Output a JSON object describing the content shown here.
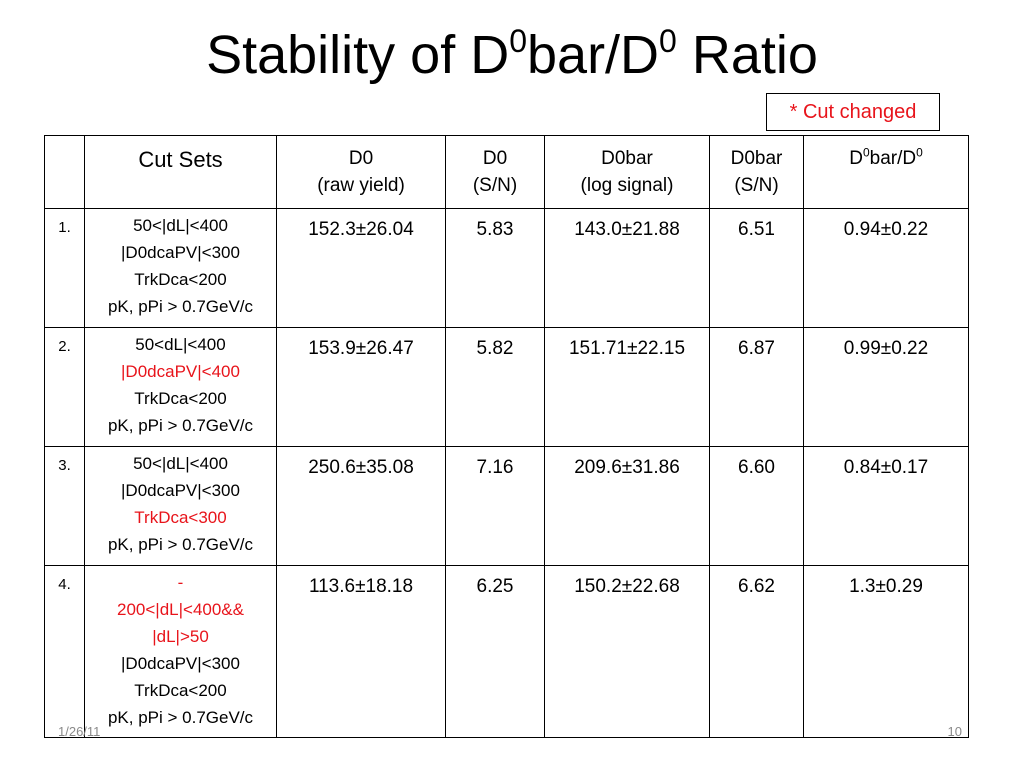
{
  "slide": {
    "title_prefix": "Stability of D",
    "title_sup1": "0",
    "title_middle": "bar/D",
    "title_sup2": "0",
    "title_suffix": " Ratio",
    "legend_text": "* Cut changed",
    "highlight_color": "#e8141b"
  },
  "table": {
    "headers": {
      "cut_sets": "Cut Sets",
      "d0_raw_line1": "D0",
      "d0_raw_line2": "(raw yield)",
      "d0_sn_line1": "D0",
      "d0_sn_line2": "(S/N)",
      "d0bar_log_line1": "D0bar",
      "d0bar_log_line2": "(log signal)",
      "d0bar_sn_line1": "D0bar",
      "d0bar_sn_line2": "(S/N)",
      "ratio_a": "D",
      "ratio_sup1": "0",
      "ratio_b": "bar/D",
      "ratio_sup2": "0"
    },
    "rows": [
      {
        "index": "1.",
        "cuts": [
          "50<|dL|<400",
          "|D0dcaPV|<300",
          "TrkDca<200",
          "pK, pPi > 0.7GeV/c"
        ],
        "d0_raw": "152.3±26.04",
        "d0_sn": "5.83",
        "d0bar_log": "143.0±21.88",
        "d0bar_sn": "6.51",
        "ratio": "0.94±0.22"
      },
      {
        "index": "2.",
        "cuts": [
          "50<dL|<400",
          "|D0dcaPV|<400",
          "TrkDca<200",
          "pK, pPi > 0.7GeV/c"
        ],
        "d0_raw": "153.9±26.47",
        "d0_sn": "5.82",
        "d0bar_log": "151.71±22.15",
        "d0bar_sn": "6.87",
        "ratio": "0.99±0.22"
      },
      {
        "index": "3.",
        "cuts": [
          "50<|dL|<400",
          "|D0dcaPV|<300",
          "TrkDca<300",
          "pK, pPi > 0.7GeV/c"
        ],
        "d0_raw": "250.6±35.08",
        "d0_sn": "7.16",
        "d0bar_log": "209.6±31.86",
        "d0bar_sn": "6.60",
        "ratio": "0.84±0.17"
      },
      {
        "index": "4.",
        "cuts": [
          "-",
          "200<|dL|<400&&",
          "|dL|>50",
          "|D0dcaPV|<300",
          "TrkDca<200",
          "pK, pPi > 0.7GeV/c"
        ],
        "d0_raw": "113.6±18.18",
        "d0_sn": "6.25",
        "d0bar_log": "150.2±22.68",
        "d0bar_sn": "6.62",
        "ratio": "1.3±0.29"
      }
    ]
  },
  "footer": {
    "date": "1/26/11",
    "page_number": "10"
  }
}
